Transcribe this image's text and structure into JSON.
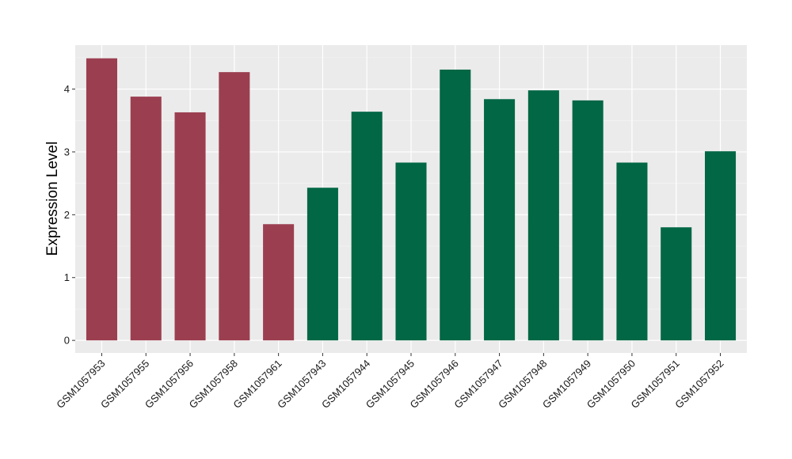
{
  "chart_data": {
    "type": "bar",
    "title": "",
    "xlabel": "",
    "ylabel": "Expression Level",
    "ylim": [
      -0.2,
      4.7
    ],
    "yticks": [
      0,
      1,
      2,
      3,
      4
    ],
    "grid": true,
    "panel_background": "#ebebeb",
    "categories": [
      "GSM1057953",
      "GSM1057955",
      "GSM1057956",
      "GSM1057958",
      "GSM1057961",
      "GSM1057943",
      "GSM1057944",
      "GSM1057945",
      "GSM1057946",
      "GSM1057947",
      "GSM1057948",
      "GSM1057949",
      "GSM1057950",
      "GSM1057951",
      "GSM1057952"
    ],
    "values": [
      4.49,
      3.88,
      3.63,
      4.27,
      1.85,
      2.43,
      3.64,
      2.83,
      4.31,
      3.84,
      3.98,
      3.82,
      2.83,
      1.8,
      3.01
    ],
    "groups": [
      0,
      0,
      0,
      0,
      0,
      1,
      1,
      1,
      1,
      1,
      1,
      1,
      1,
      1,
      1
    ],
    "group_colors": [
      "#9b3f50",
      "#016745"
    ]
  }
}
